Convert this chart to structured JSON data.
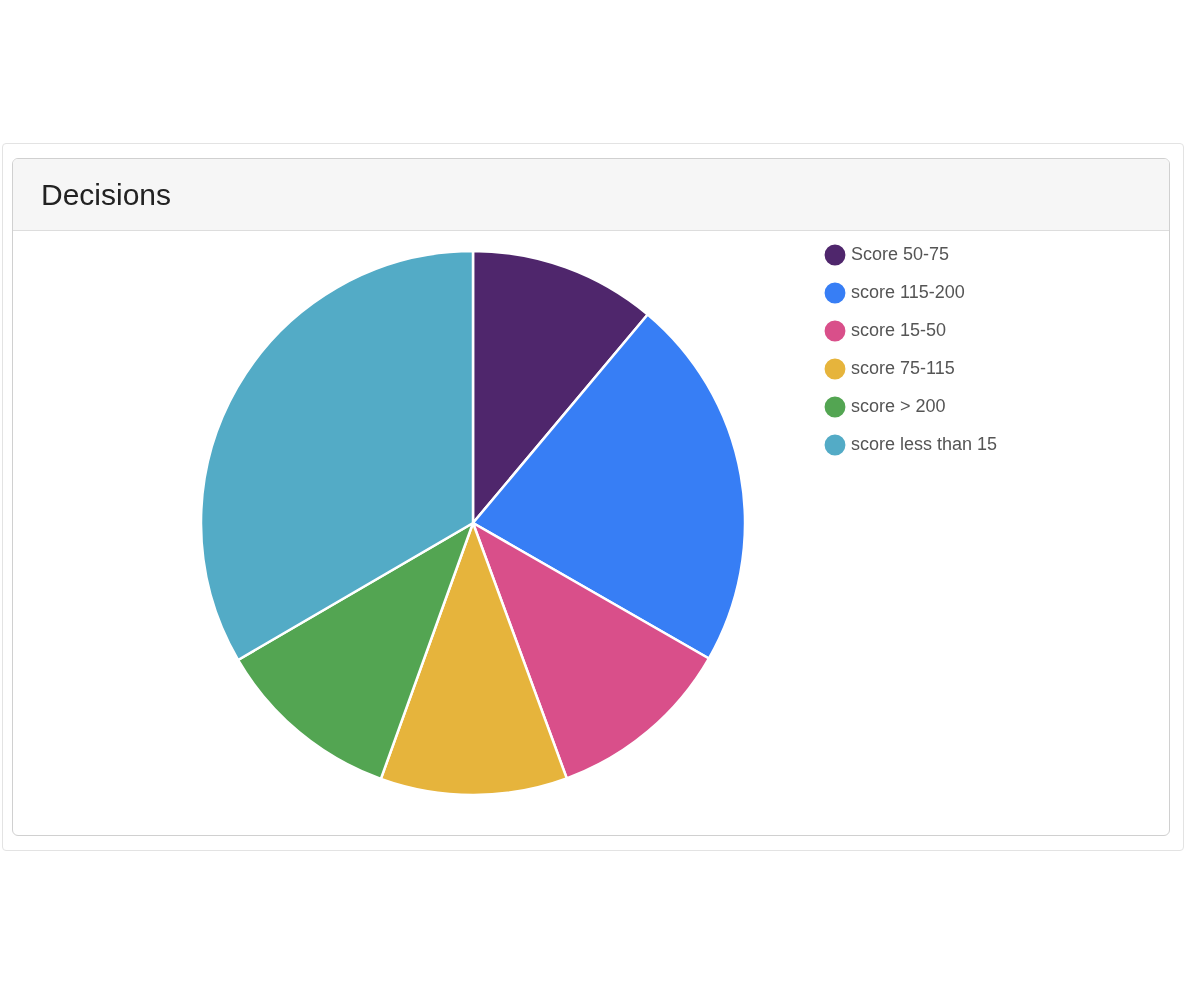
{
  "chart_data": {
    "type": "pie",
    "title": "Decisions",
    "categories": [
      "Score 50-75",
      "score 115-200",
      "score 15-50",
      "score 75-115",
      "score > 200",
      "score less than 15"
    ],
    "values": [
      11.1,
      22.2,
      11.1,
      11.1,
      11.1,
      33.4
    ],
    "colors": [
      "#4f266c",
      "#377ef5",
      "#d94f8a",
      "#e6b43c",
      "#53a552",
      "#53abc6"
    ],
    "legend": "right"
  }
}
